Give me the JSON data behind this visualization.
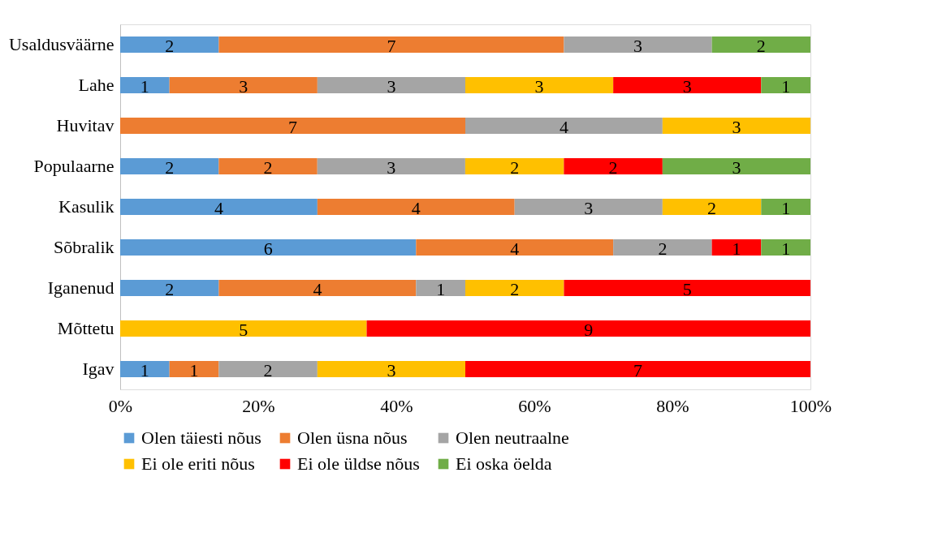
{
  "chart_data": {
    "type": "bar",
    "orientation": "horizontal",
    "stacked": true,
    "grid": false,
    "legend": "bottom",
    "categories": [
      "Usaldusväärne",
      "Lahe",
      "Huvitav",
      "Populaarne",
      "Kasulik",
      "Sõbralik",
      "Iganenud",
      "Mõttetu",
      "Igav"
    ],
    "xlim": [
      0,
      100
    ],
    "xticks": [
      {
        "value": 0,
        "label": "0%"
      },
      {
        "value": 20,
        "label": "20%"
      },
      {
        "value": 40,
        "label": "40%"
      },
      {
        "value": 60,
        "label": "60%"
      },
      {
        "value": 80,
        "label": "80%"
      },
      {
        "value": 100,
        "label": "100%"
      }
    ],
    "series": [
      {
        "name": "Olen täiesti nõus",
        "color": "#5b9bd5",
        "values": [
          14.29,
          7.14,
          null,
          14.28,
          28.57,
          42.86,
          14.29,
          null,
          7.14
        ]
      },
      {
        "name": "Olen üsna nõus",
        "color": "#ed7d31",
        "values": [
          50,
          21.43,
          50,
          14.28,
          28.57,
          28.57,
          28.57,
          null,
          7.14
        ]
      },
      {
        "name": "Olen neutraalne",
        "color": "#a5a5a5",
        "values": [
          21.43,
          21.43,
          28.57,
          21.43,
          21.43,
          14.29,
          7.14,
          null,
          14.29
        ]
      },
      {
        "name": "Ei ole eriti nõus",
        "color": "#ffc000",
        "values": [
          null,
          21.43,
          21.43,
          14.29,
          14.29,
          null,
          14.29,
          35.71,
          21.43
        ]
      },
      {
        "name": "Ei ole üldse nõus",
        "color": "#ff0000",
        "values": [
          null,
          21.43,
          null,
          14.29,
          null,
          7.14,
          35.71,
          64.29,
          50
        ]
      },
      {
        "name": "Ei oska öelda",
        "color": "#70ad47",
        "values": [
          14.28,
          7.14,
          null,
          21.43,
          7.14,
          7.14,
          null,
          null,
          null
        ]
      }
    ],
    "annotations": [
      "2",
      "7",
      "3",
      "2",
      "1",
      "3",
      "3",
      "3",
      "3",
      "1",
      "7",
      "4",
      "3",
      "2",
      "2",
      "3",
      "2",
      "2",
      "3",
      "4",
      "4",
      "3",
      "2",
      "1",
      "6",
      "4",
      "2",
      "1",
      "1",
      "2",
      "4",
      "1",
      "2",
      "5",
      "5",
      "9",
      "1",
      "1",
      "2",
      "3",
      "7"
    ]
  }
}
